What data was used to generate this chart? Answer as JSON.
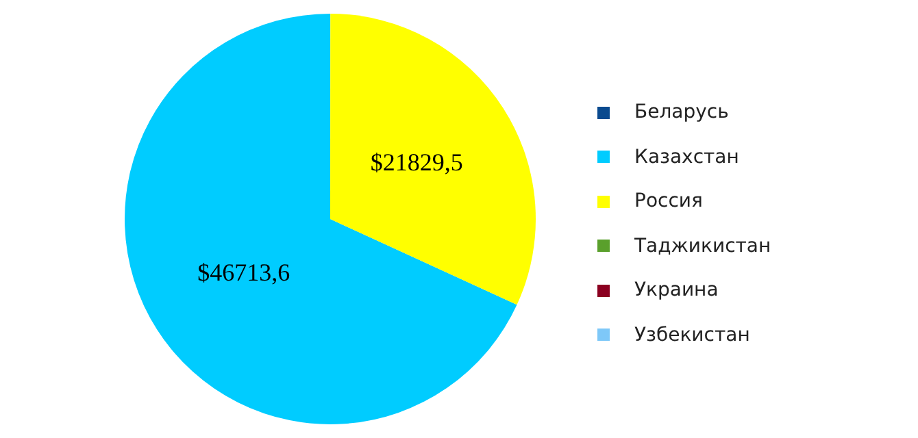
{
  "chart_data": {
    "type": "pie",
    "categories": [
      "Беларусь",
      "Казахстан",
      "Россия",
      "Таджикистан",
      "Украина",
      "Узбекистан"
    ],
    "values": [
      0,
      46713.6,
      21829.5,
      0,
      0,
      0
    ],
    "colors": [
      "#0a4a8f",
      "#00ccff",
      "#ffff00",
      "#5aa02c",
      "#8b0020",
      "#7ec8f8"
    ],
    "value_labels": [
      null,
      "$46713,6",
      "$21829,5",
      null,
      null,
      null
    ],
    "legend": "right"
  }
}
